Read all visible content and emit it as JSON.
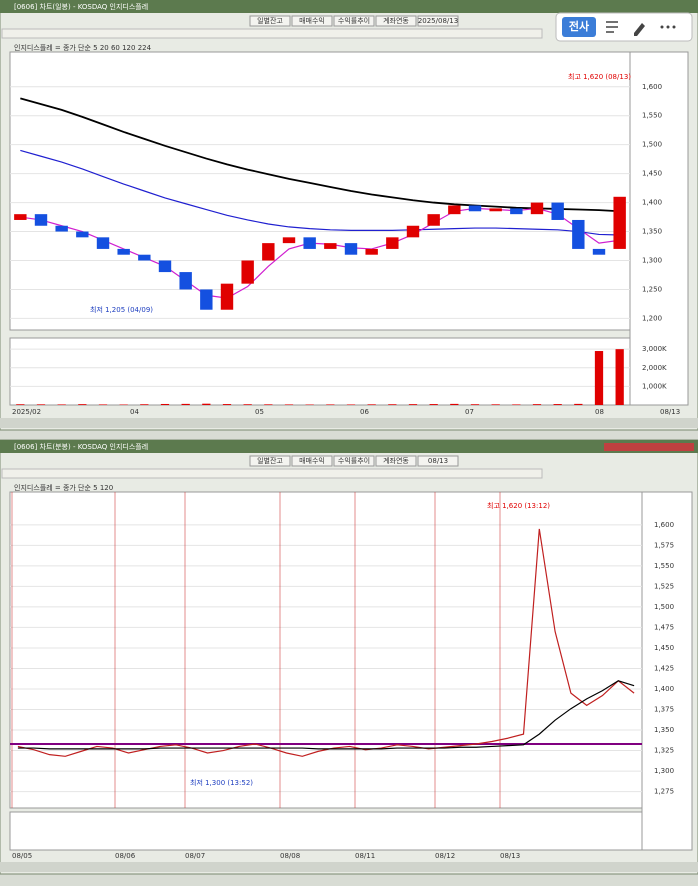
{
  "overlay": {
    "button": "전사"
  },
  "chart_data": [
    {
      "type": "candlestick",
      "title": "[0606] 차트(일봉) - KOSDAQ 인지디스플레",
      "toolbar": [
        "일별잔고",
        "매매수익",
        "수익률추이",
        "계좌연동",
        "2025/08/13"
      ],
      "legend_text": "인지디스플레 = 종가 단순 5 20 60 120 224",
      "open": [
        1370,
        1380,
        1360,
        1350,
        1340,
        1320,
        1310,
        1300,
        1280,
        1250,
        1215,
        1260,
        1300,
        1330,
        1340,
        1320,
        1330,
        1310,
        1320,
        1340,
        1360,
        1380,
        1395,
        1385,
        1390,
        1380,
        1400,
        1370,
        1320,
        1320
      ],
      "close": [
        1380,
        1360,
        1350,
        1340,
        1320,
        1310,
        1300,
        1280,
        1250,
        1215,
        1260,
        1300,
        1330,
        1340,
        1320,
        1330,
        1310,
        1320,
        1340,
        1360,
        1380,
        1395,
        1385,
        1390,
        1380,
        1400,
        1370,
        1320,
        1310,
        1410
      ],
      "up_color": "#e00000",
      "down_color": "#1450e0",
      "series": [
        {
          "name": "종가 단순 224",
          "color": "#000000",
          "values": [
            1580,
            1570,
            1560,
            1548,
            1535,
            1522,
            1510,
            1498,
            1487,
            1476,
            1466,
            1457,
            1449,
            1441,
            1434,
            1427,
            1420,
            1414,
            1409,
            1404,
            1400,
            1397,
            1395,
            1393,
            1391,
            1390,
            1389,
            1388,
            1387,
            1385
          ]
        },
        {
          "name": "종가 단순 120",
          "color": "#2020d0",
          "values": [
            1490,
            1480,
            1470,
            1458,
            1445,
            1432,
            1420,
            1408,
            1398,
            1388,
            1378,
            1370,
            1363,
            1358,
            1355,
            1353,
            1352,
            1352,
            1352,
            1353,
            1354,
            1355,
            1356,
            1356,
            1355,
            1354,
            1353,
            1350,
            1345,
            1344
          ]
        },
        {
          "name": "종가 단순 5",
          "color": "#d020d0",
          "values": [
            1375,
            1370,
            1360,
            1350,
            1335,
            1320,
            1305,
            1290,
            1265,
            1240,
            1235,
            1255,
            1290,
            1320,
            1330,
            1328,
            1322,
            1320,
            1330,
            1345,
            1365,
            1385,
            1390,
            1388,
            1386,
            1390,
            1380,
            1355,
            1330,
            1335
          ]
        }
      ],
      "ylim": [
        1180,
        1660
      ],
      "yticks": [
        {
          "value": 1200,
          "label": "1,200"
        },
        {
          "value": 1250,
          "label": "1,250"
        },
        {
          "value": 1300,
          "label": "1,300"
        },
        {
          "value": 1350,
          "label": "1,350"
        },
        {
          "value": 1400,
          "label": "1,400"
        },
        {
          "value": 1450,
          "label": "1,450"
        },
        {
          "value": 1500,
          "label": "1,500"
        },
        {
          "value": 1550,
          "label": "1,550"
        },
        {
          "value": 1600,
          "label": "1,600"
        }
      ],
      "volume": [
        40,
        35,
        30,
        45,
        30,
        25,
        40,
        55,
        60,
        70,
        50,
        40,
        35,
        30,
        25,
        30,
        28,
        35,
        40,
        45,
        50,
        60,
        40,
        35,
        30,
        45,
        50,
        60,
        2900,
        3000
      ],
      "volume_color": "#e00000",
      "vlim": [
        0,
        3600
      ],
      "vticks": [
        {
          "value": 1000,
          "label": "1,000K"
        },
        {
          "value": 2000,
          "label": "2,000K"
        },
        {
          "value": 3000,
          "label": "3,000K"
        }
      ],
      "xlabels": [
        "2025/02",
        "04",
        "05",
        "06",
        "07",
        "08",
        "08/13"
      ],
      "annotations": [
        "최고 1,620 (08/13)",
        "최저 1,205 (04/09)"
      ]
    },
    {
      "type": "line",
      "title": "[0606] 차트(분봉) - KOSDAQ 인지디스플레",
      "toolbar": [
        "일별잔고",
        "매매수익",
        "수익률추이",
        "계좌연동",
        "08/13"
      ],
      "legend_text": "인지디스플레 = 종가 단순 5 120",
      "series": [
        {
          "name": "종가",
          "color": "#c02020",
          "values": [
            1330,
            1326,
            1320,
            1318,
            1324,
            1330,
            1328,
            1322,
            1326,
            1330,
            1332,
            1328,
            1322,
            1325,
            1330,
            1333,
            1328,
            1322,
            1318,
            1324,
            1328,
            1330,
            1326,
            1328,
            1332,
            1330,
            1327,
            1329,
            1331,
            1333,
            1336,
            1340,
            1345,
            1595,
            1470,
            1395,
            1380,
            1392,
            1410,
            1395
          ]
        },
        {
          "name": "종가 단순 120",
          "color": "#000000",
          "values": [
            1328,
            1328,
            1327,
            1327,
            1327,
            1327,
            1327,
            1327,
            1327,
            1328,
            1328,
            1328,
            1328,
            1328,
            1328,
            1328,
            1328,
            1328,
            1328,
            1327,
            1327,
            1327,
            1327,
            1327,
            1328,
            1328,
            1328,
            1328,
            1329,
            1329,
            1330,
            1331,
            1332,
            1345,
            1362,
            1376,
            1388,
            1398,
            1410,
            1404
          ]
        }
      ],
      "ylim": [
        1255,
        1640
      ],
      "yticks": [
        {
          "value": 1275,
          "label": "1,275"
        },
        {
          "value": 1300,
          "label": "1,300"
        },
        {
          "value": 1325,
          "label": "1,325"
        },
        {
          "value": 1350,
          "label": "1,350"
        },
        {
          "value": 1375,
          "label": "1,375"
        },
        {
          "value": 1400,
          "label": "1,400"
        },
        {
          "value": 1425,
          "label": "1,425"
        },
        {
          "value": 1450,
          "label": "1,450"
        },
        {
          "value": 1475,
          "label": "1,475"
        },
        {
          "value": 1500,
          "label": "1,500"
        },
        {
          "value": 1525,
          "label": "1,525"
        },
        {
          "value": 1550,
          "label": "1,550"
        },
        {
          "value": 1575,
          "label": "1,575"
        },
        {
          "value": 1600,
          "label": "1,600"
        }
      ],
      "xlabels": [
        "08/05",
        "08/06",
        "08/07",
        "08/08",
        "08/11",
        "08/12",
        "08/13"
      ],
      "annotations": [
        "최고 1,620 (13:12)",
        "최저 1,300 (13:52)"
      ]
    }
  ]
}
